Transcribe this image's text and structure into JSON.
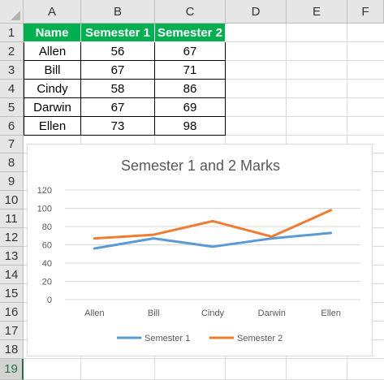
{
  "columns": [
    "A",
    "B",
    "C",
    "D",
    "E",
    "F"
  ],
  "rows": [
    "1",
    "2",
    "3",
    "4",
    "5",
    "6",
    "7",
    "8",
    "9",
    "10",
    "11",
    "12",
    "13",
    "14",
    "15",
    "16",
    "17",
    "18",
    "19"
  ],
  "selected_row": "19",
  "table": {
    "headers": [
      "Name",
      "Semester 1",
      "Semester 2"
    ],
    "rows": [
      [
        "Allen",
        "56",
        "67"
      ],
      [
        "Bill",
        "67",
        "71"
      ],
      [
        "Cindy",
        "58",
        "86"
      ],
      [
        "Darwin",
        "67",
        "69"
      ],
      [
        "Ellen",
        "73",
        "98"
      ]
    ]
  },
  "colors": {
    "header_fill": "#00b050",
    "series1": "#5b9bd5",
    "series2": "#ed7d31"
  },
  "chart_data": {
    "type": "line",
    "title": "Semester 1 and 2 Marks",
    "categories": [
      "Allen",
      "Bill",
      "Cindy",
      "Darwin",
      "Ellen"
    ],
    "series": [
      {
        "name": "Semester 1",
        "values": [
          56,
          67,
          58,
          67,
          73
        ]
      },
      {
        "name": "Semester 2",
        "values": [
          67,
          71,
          86,
          69,
          98
        ]
      }
    ],
    "ylim": [
      0,
      120
    ],
    "yticks": [
      "0",
      "20",
      "40",
      "60",
      "80",
      "100",
      "120"
    ],
    "grid": true,
    "legend": "bottom"
  }
}
